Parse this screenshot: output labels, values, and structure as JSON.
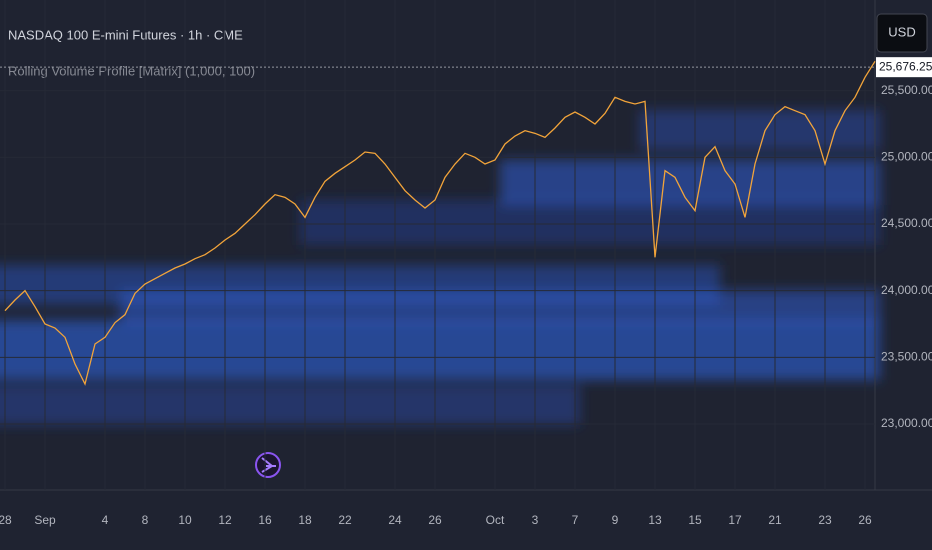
{
  "chart_data": {
    "type": "line",
    "title": "NASDAQ 100 E-mini Futures · 1h · CME",
    "subtitle": "Rolling Volume Profile [Matrix] (1,000, 100)",
    "currency": "USD",
    "color": "#f2a43a",
    "last_price": {
      "value": 25676.25,
      "label": "25,676.25"
    },
    "categories": [
      "28",
      null,
      null,
      null,
      "Sep",
      null,
      null,
      null,
      null,
      null,
      "4",
      null,
      null,
      null,
      "8",
      null,
      null,
      null,
      "10",
      null,
      null,
      null,
      "12",
      null,
      null,
      null,
      "16",
      null,
      null,
      null,
      "18",
      null,
      null,
      null,
      "22",
      null,
      null,
      null,
      null,
      "24",
      null,
      null,
      null,
      "26",
      null,
      null,
      null,
      null,
      null,
      "Oct",
      null,
      null,
      null,
      "3",
      null,
      null,
      null,
      "7",
      null,
      null,
      null,
      "9",
      null,
      null,
      null,
      "13",
      null,
      null,
      null,
      "15",
      null,
      null,
      null,
      "17",
      null,
      null,
      null,
      "21",
      null,
      null,
      null,
      null,
      "23",
      null,
      null,
      null,
      "26",
      null
    ],
    "values": [
      23850,
      23930,
      24000,
      23880,
      23750,
      23720,
      23650,
      23450,
      23300,
      23600,
      23650,
      23760,
      23820,
      23980,
      24050,
      24090,
      24130,
      24170,
      24200,
      24240,
      24270,
      24320,
      24380,
      24430,
      24500,
      24570,
      24650,
      24720,
      24700,
      24650,
      24550,
      24700,
      24820,
      24880,
      24930,
      24980,
      25040,
      25030,
      24950,
      24850,
      24750,
      24680,
      24620,
      24680,
      24850,
      24950,
      25030,
      25000,
      24950,
      24980,
      25100,
      25160,
      25200,
      25180,
      25150,
      25220,
      25300,
      25340,
      25300,
      25250,
      25330,
      25450,
      25420,
      25400,
      25420,
      24250,
      24900,
      24850,
      24700,
      24600,
      25000,
      25080,
      24900,
      24800,
      24550,
      24950,
      25200,
      25320,
      25380,
      25350,
      25320,
      25200,
      24950,
      25200,
      25350,
      25450,
      25600,
      25720
    ],
    "ylim": [
      22505,
      26180
    ],
    "yticks": [
      {
        "value": 23000,
        "label": "23,000.00"
      },
      {
        "value": 23500,
        "label": "23,500.00"
      },
      {
        "value": 24000,
        "label": "24,000.00"
      },
      {
        "value": 24500,
        "label": "24,500.00"
      },
      {
        "value": 25000,
        "label": "25,000.00"
      },
      {
        "value": 25500,
        "label": "25,500.00"
      }
    ]
  }
}
